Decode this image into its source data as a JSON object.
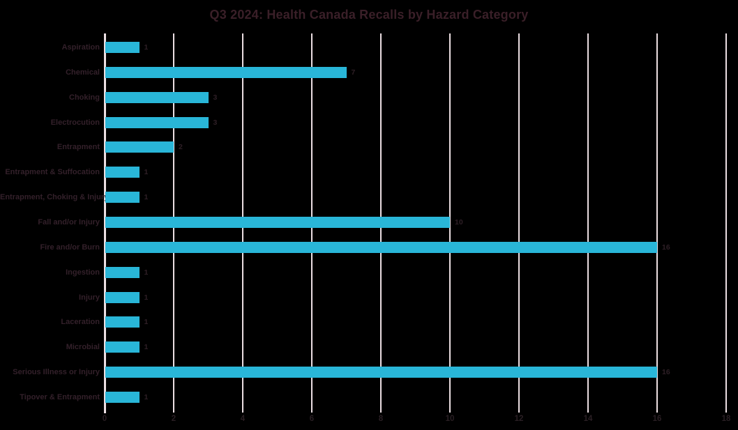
{
  "chart_data": {
    "type": "bar",
    "orientation": "horizontal",
    "title": "Q3 2024: Health Canada Recalls by Hazard Category",
    "categories": [
      "Aspiration",
      "Chemical",
      "Choking",
      "Electrocution",
      "Entrapment",
      "Entrapment & Suffocation",
      "Entrapment, Choking & Injury",
      "Fall and/or Injury",
      "Fire and/or Burn",
      "Ingestion",
      "Injury",
      "Laceration",
      "Microbial",
      "Serious Illness or Injury",
      "Tipover & Entrapment"
    ],
    "values": [
      1,
      7,
      3,
      3,
      2,
      1,
      1,
      10,
      16,
      1,
      1,
      1,
      1,
      16,
      1
    ],
    "xlabel": "",
    "ylabel": "",
    "xlim": [
      0,
      18
    ],
    "xticks": [
      0,
      2,
      4,
      6,
      8,
      10,
      12,
      14,
      16,
      18
    ],
    "grid": "vertical-gridlines-only",
    "legend": "none",
    "data_labels": "shown-at-bar-end",
    "colors": {
      "background": "#000000",
      "bar": "#29B6D8",
      "gridline": "#ECDFE3",
      "axis_line": "#ECDFE3",
      "title_text": "#3A1F28",
      "category_text": "#33202A",
      "value_text": "#2E1F26",
      "tick_text": "#2A1F24"
    }
  }
}
